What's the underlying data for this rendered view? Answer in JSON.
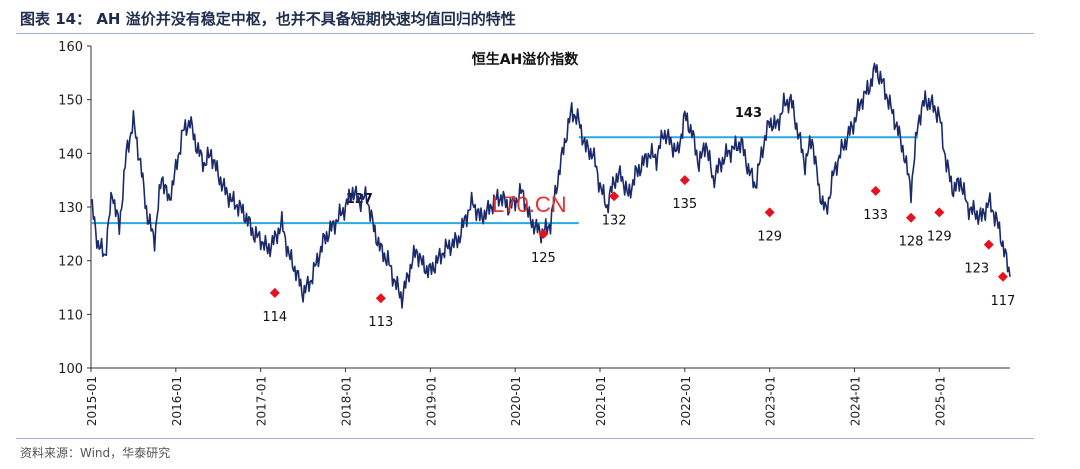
{
  "figure": {
    "title": "图表 14：  AH 溢价并没有稳定中枢，也并不具备短期快速均值回归的特性",
    "source": "资料来源：Wind，华泰研究",
    "watermark": "L70.CN"
  },
  "chart_data": {
    "type": "line",
    "title": "恒生AH溢价指数",
    "xlabel": "",
    "ylabel": "",
    "ylim": [
      100,
      160
    ],
    "yticks": [
      "100",
      "110",
      "120",
      "130",
      "140",
      "150",
      "160"
    ],
    "xlim": [
      "2015-01",
      "2025-11"
    ],
    "xticks": [
      "2015-01",
      "2016-01",
      "2017-01",
      "2018-01",
      "2019-01",
      "2020-01",
      "2021-01",
      "2022-01",
      "2023-01",
      "2024-01",
      "2025-01"
    ],
    "grid": false,
    "legend": "none",
    "colors": {
      "series": "#1b2a6b",
      "mean_line": "#29a9e0",
      "markers": "#e8101c"
    },
    "series": [
      {
        "x": [
          "2015-01",
          "2015-02",
          "2015-03",
          "2015-04",
          "2015-05",
          "2015-06",
          "2015-07",
          "2015-08",
          "2015-09",
          "2015-10",
          "2015-11",
          "2015-12",
          "2016-01",
          "2016-02",
          "2016-03",
          "2016-04",
          "2016-05",
          "2016-06",
          "2016-07",
          "2016-08",
          "2016-09",
          "2016-10",
          "2016-11",
          "2016-12",
          "2017-01",
          "2017-02",
          "2017-03",
          "2017-04",
          "2017-05",
          "2017-06",
          "2017-07",
          "2017-08",
          "2017-09",
          "2017-10",
          "2017-11",
          "2017-12",
          "2018-01",
          "2018-02",
          "2018-03",
          "2018-04",
          "2018-05",
          "2018-06",
          "2018-07",
          "2018-08",
          "2018-09",
          "2018-10",
          "2018-11",
          "2018-12",
          "2019-01",
          "2019-02",
          "2019-03",
          "2019-04",
          "2019-05",
          "2019-06",
          "2019-07",
          "2019-08",
          "2019-09",
          "2019-10",
          "2019-11",
          "2019-12",
          "2020-01",
          "2020-02",
          "2020-03",
          "2020-04",
          "2020-05",
          "2020-06",
          "2020-07",
          "2020-08",
          "2020-09",
          "2020-10",
          "2020-11",
          "2020-12",
          "2021-01",
          "2021-02",
          "2021-03",
          "2021-04",
          "2021-05",
          "2021-06",
          "2021-07",
          "2021-08",
          "2021-09",
          "2021-10",
          "2021-11",
          "2021-12",
          "2022-01",
          "2022-02",
          "2022-03",
          "2022-04",
          "2022-05",
          "2022-06",
          "2022-07",
          "2022-08",
          "2022-09",
          "2022-10",
          "2022-11",
          "2022-12",
          "2023-01",
          "2023-02",
          "2023-03",
          "2023-04",
          "2023-05",
          "2023-06",
          "2023-07",
          "2023-08",
          "2023-09",
          "2023-10",
          "2023-11",
          "2023-12",
          "2024-01",
          "2024-02",
          "2024-03",
          "2024-04",
          "2024-05",
          "2024-06",
          "2024-07",
          "2024-08",
          "2024-09",
          "2024-10",
          "2024-11",
          "2024-12",
          "2025-01",
          "2025-02",
          "2025-03",
          "2025-04",
          "2025-05",
          "2025-06",
          "2025-07",
          "2025-08",
          "2025-09",
          "2025-10",
          "2025-11"
        ],
        "values": [
          131,
          123,
          121,
          133,
          126,
          140,
          146,
          138,
          128,
          124,
          136,
          131,
          137,
          144,
          146,
          141,
          138,
          140,
          136,
          133,
          131,
          130,
          128,
          125,
          124,
          122,
          124,
          127,
          121,
          118,
          114,
          116,
          120,
          124,
          126,
          128,
          130,
          133,
          131,
          132,
          126,
          122,
          120,
          116,
          113,
          118,
          122,
          119,
          118,
          120,
          122,
          123,
          124,
          128,
          131,
          128,
          129,
          131,
          132,
          130,
          131,
          133,
          128,
          126,
          125,
          127,
          135,
          142,
          148,
          146,
          141,
          140,
          134,
          130,
          135,
          136,
          132,
          136,
          138,
          140,
          139,
          144,
          142,
          140,
          147,
          144,
          138,
          142,
          135,
          138,
          140,
          141,
          142,
          137,
          134,
          141,
          146,
          145,
          149,
          150,
          144,
          138,
          143,
          133,
          129,
          136,
          140,
          143,
          146,
          150,
          152,
          156,
          153,
          149,
          145,
          140,
          133,
          146,
          150,
          149,
          147,
          138,
          133,
          135,
          130,
          129,
          128,
          131,
          128,
          123,
          117
        ],
        "min_annotations": [
          {
            "x": "2017-03",
            "value": 114,
            "label": "114"
          },
          {
            "x": "2018-06",
            "value": 113,
            "label": "113"
          },
          {
            "x": "2020-05",
            "value": 125,
            "label": "125"
          },
          {
            "x": "2021-03",
            "value": 132,
            "label": "132"
          },
          {
            "x": "2022-01",
            "value": 135,
            "label": "135"
          },
          {
            "x": "2023-01",
            "value": 129,
            "label": "129"
          },
          {
            "x": "2024-04",
            "value": 133,
            "label": "133"
          },
          {
            "x": "2024-09",
            "value": 128,
            "label": "128"
          },
          {
            "x": "2025-01",
            "value": 129,
            "label": "129"
          },
          {
            "x": "2025-08",
            "value": 123,
            "label": "123"
          },
          {
            "x": "2025-10",
            "value": 117,
            "label": "117"
          }
        ]
      }
    ],
    "mean_lines": [
      {
        "from": "2015-01",
        "to": "2020-10",
        "value": 127,
        "label": "127"
      },
      {
        "from": "2020-10",
        "to": "2024-10",
        "value": 143,
        "label": "143"
      }
    ]
  }
}
